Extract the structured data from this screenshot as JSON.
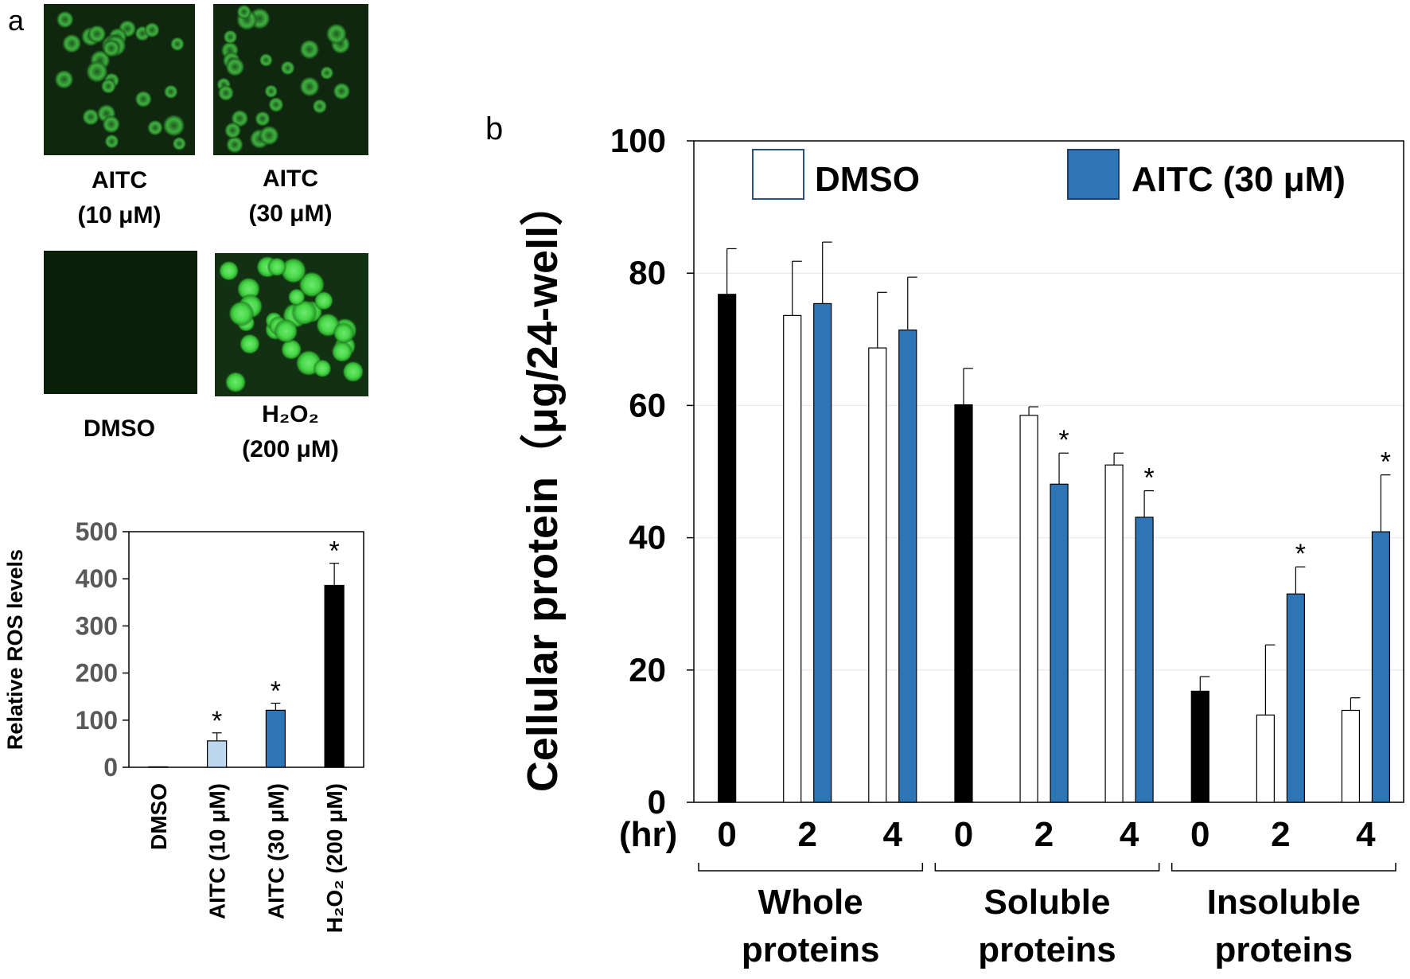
{
  "panel_labels": {
    "a": "a",
    "b": "b"
  },
  "micrographs": [
    {
      "label_line1": "AITC",
      "label_line2": "(10 μM)",
      "intensity": "medium"
    },
    {
      "label_line1": "AITC",
      "label_line2": "(30 μM)",
      "intensity": "medium"
    },
    {
      "label_line1": "DMSO",
      "label_line2": "",
      "intensity": "none"
    },
    {
      "label_line1": "H₂O₂",
      "label_line2": "(200 μM)",
      "intensity": "high"
    }
  ],
  "chart_data": [
    {
      "type": "bar",
      "ylabel": "Relative ROS levels",
      "ylim": [
        0,
        500
      ],
      "yticks": [
        "0",
        "100",
        "200",
        "300",
        "400",
        "500"
      ],
      "categories": [
        "DMSO",
        "AITC (10 μM)",
        "AITC (30 μM)",
        "H₂O₂ (200 μM)"
      ],
      "values": [
        1,
        56,
        121,
        386
      ],
      "errors": [
        0,
        17,
        15,
        47
      ],
      "significant": [
        false,
        true,
        true,
        true
      ],
      "colors": [
        "#ffffff",
        "#bdd7ee",
        "#2e75b6",
        "#000000"
      ],
      "sig_marker": "*",
      "grid": false,
      "legend": "none"
    },
    {
      "type": "bar",
      "ylabel": "Cellular protein（μg/24-well）",
      "ylim": [
        0,
        100
      ],
      "yticks": [
        "0",
        "20",
        "40",
        "60",
        "80",
        "100"
      ],
      "x_unit_label": "(hr)",
      "legend": "top",
      "legend_entries": [
        {
          "name": "DMSO",
          "color": "#ffffff"
        },
        {
          "name": "AITC (30 μM)",
          "color": "#2e75b6"
        }
      ],
      "grid": true,
      "groups": [
        {
          "name_line1": "Whole",
          "name_line2": "proteins",
          "timepoints": [
            "0",
            "2",
            "4"
          ],
          "bars": [
            {
              "time": "0",
              "series": "baseline",
              "color": "#000000",
              "value": 76.8,
              "error": 6.9,
              "sig": false
            },
            {
              "time": "2",
              "series": "DMSO",
              "color": "#ffffff",
              "value": 73.6,
              "error": 8.2,
              "sig": false
            },
            {
              "time": "2",
              "series": "AITC (30 μM)",
              "color": "#2e75b6",
              "value": 75.4,
              "error": 9.3,
              "sig": false
            },
            {
              "time": "4",
              "series": "DMSO",
              "color": "#ffffff",
              "value": 68.7,
              "error": 8.4,
              "sig": false
            },
            {
              "time": "4",
              "series": "AITC (30 μM)",
              "color": "#2e75b6",
              "value": 71.4,
              "error": 8.0,
              "sig": false
            }
          ]
        },
        {
          "name_line1": "Soluble",
          "name_line2": "proteins",
          "timepoints": [
            "0",
            "2",
            "4"
          ],
          "bars": [
            {
              "time": "0",
              "series": "baseline",
              "color": "#000000",
              "value": 60.1,
              "error": 5.5,
              "sig": false
            },
            {
              "time": "2",
              "series": "DMSO",
              "color": "#ffffff",
              "value": 58.5,
              "error": 1.3,
              "sig": false
            },
            {
              "time": "2",
              "series": "AITC (30 μM)",
              "color": "#2e75b6",
              "value": 48.1,
              "error": 4.7,
              "sig": true
            },
            {
              "time": "4",
              "series": "DMSO",
              "color": "#ffffff",
              "value": 51.0,
              "error": 1.8,
              "sig": false
            },
            {
              "time": "4",
              "series": "AITC (30 μM)",
              "color": "#2e75b6",
              "value": 43.1,
              "error": 4.0,
              "sig": true
            }
          ]
        },
        {
          "name_line1": "Insoluble",
          "name_line2": "proteins",
          "timepoints": [
            "0",
            "2",
            "4"
          ],
          "bars": [
            {
              "time": "0",
              "series": "baseline",
              "color": "#000000",
              "value": 16.8,
              "error": 2.2,
              "sig": false
            },
            {
              "time": "2",
              "series": "DMSO",
              "color": "#ffffff",
              "value": 13.2,
              "error": 10.6,
              "sig": false
            },
            {
              "time": "2",
              "series": "AITC (30 μM)",
              "color": "#2e75b6",
              "value": 31.5,
              "error": 4.1,
              "sig": true
            },
            {
              "time": "4",
              "series": "DMSO",
              "color": "#ffffff",
              "value": 13.9,
              "error": 1.9,
              "sig": false
            },
            {
              "time": "4",
              "series": "AITC (30 μM)",
              "color": "#2e75b6",
              "value": 40.9,
              "error": 8.6,
              "sig": true
            }
          ]
        }
      ],
      "sig_marker": "*"
    }
  ]
}
